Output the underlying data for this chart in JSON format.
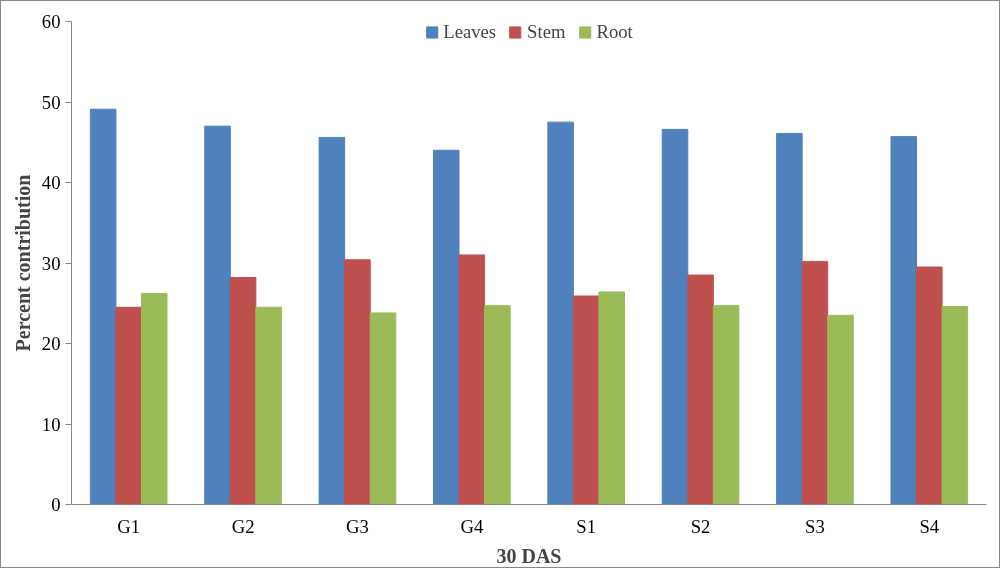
{
  "chart_data": {
    "type": "bar",
    "xlabel": "30 DAS",
    "ylabel": "Percent contribution",
    "categories": [
      "G1",
      "G2",
      "G3",
      "G4",
      "S1",
      "S2",
      "S3",
      "S4"
    ],
    "series": [
      {
        "name": "Leaves",
        "color": "#4f81bd",
        "values": [
          49.1,
          47.0,
          45.6,
          44.0,
          47.5,
          46.6,
          46.1,
          45.7
        ]
      },
      {
        "name": "Stem",
        "color": "#c0504d",
        "values": [
          24.5,
          28.2,
          30.4,
          31.0,
          25.9,
          28.5,
          30.2,
          29.5
        ]
      },
      {
        "name": "Root",
        "color": "#9bbb59",
        "values": [
          26.2,
          24.5,
          23.8,
          24.7,
          26.4,
          24.7,
          23.5,
          24.6
        ]
      }
    ],
    "ylim": [
      0,
      60
    ],
    "yticks": [
      0,
      10,
      20,
      30,
      40,
      50,
      60
    ],
    "grid": false,
    "legend": "top"
  }
}
